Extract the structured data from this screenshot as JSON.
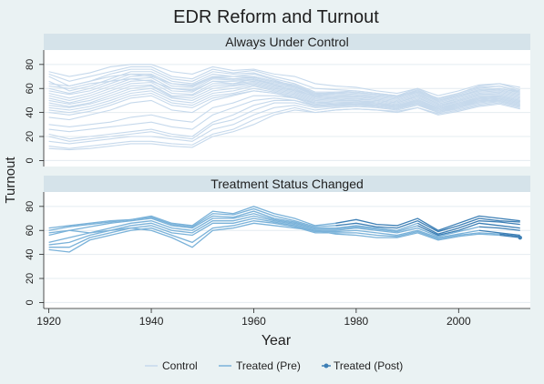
{
  "chart_data": {
    "type": "line",
    "title": "EDR Reform and Turnout",
    "xlabel": "Year",
    "ylabel": "Turnout",
    "xlim": [
      1919,
      2014
    ],
    "ylim": [
      -5,
      92
    ],
    "x_ticks": [
      1920,
      1940,
      1960,
      1980,
      2000
    ],
    "y_ticks": [
      0,
      20,
      40,
      60,
      80
    ],
    "grid": true,
    "legend_position": "bottom",
    "legend": [
      {
        "label": "Control",
        "color": "#c6d9ec"
      },
      {
        "label": "Treated (Pre)",
        "color": "#7ab2d9"
      },
      {
        "label": "Treated (Post)",
        "color": "#3d7fb5"
      }
    ],
    "x": [
      1920,
      1924,
      1928,
      1932,
      1936,
      1940,
      1944,
      1948,
      1952,
      1956,
      1960,
      1964,
      1968,
      1972,
      1976,
      1980,
      1984,
      1988,
      1992,
      1996,
      2000,
      2004,
      2008,
      2012
    ],
    "panels": [
      {
        "title": "Always Under Control",
        "series": [
          {
            "group": "Control",
            "values": [
              74,
              70,
              73,
              78,
              80,
              80,
              74,
              72,
              78,
              75,
              76,
              72,
              70,
              64,
              62,
              61,
              58,
              56,
              60,
              54,
              58,
              63,
              64,
              61
            ]
          },
          {
            "group": "Control",
            "values": [
              72,
              66,
              70,
              74,
              78,
              78,
              70,
              68,
              76,
              73,
              75,
              70,
              66,
              60,
              59,
              58,
              56,
              54,
              58,
              52,
              56,
              62,
              64,
              59
            ]
          },
          {
            "group": "Control",
            "values": [
              70,
              62,
              66,
              72,
              76,
              76,
              68,
              66,
              74,
              72,
              73,
              68,
              64,
              57,
              57,
              56,
              55,
              53,
              59,
              50,
              55,
              60,
              62,
              57
            ]
          },
          {
            "group": "Control",
            "values": [
              66,
              58,
              62,
              68,
              74,
              74,
              66,
              64,
              72,
              70,
              72,
              67,
              62,
              56,
              56,
              55,
              54,
              52,
              58,
              49,
              54,
              59,
              60,
              56
            ]
          },
          {
            "group": "Control",
            "values": [
              60,
              56,
              60,
              66,
              72,
              72,
              64,
              62,
              70,
              70,
              70,
              66,
              63,
              56,
              55,
              54,
              53,
              51,
              57,
              48,
              53,
              58,
              59,
              55
            ]
          },
          {
            "group": "Control",
            "values": [
              58,
              55,
              58,
              64,
              70,
              71,
              62,
              61,
              69,
              68,
              69,
              65,
              62,
              55,
              54,
              54,
              52,
              50,
              56,
              47,
              52,
              57,
              58,
              54
            ]
          },
          {
            "group": "Control",
            "values": [
              56,
              52,
              56,
              62,
              68,
              69,
              60,
              59,
              68,
              67,
              68,
              64,
              61,
              54,
              53,
              53,
              51,
              49,
              55,
              47,
              51,
              56,
              57,
              53
            ]
          },
          {
            "group": "Control",
            "values": [
              54,
              50,
              54,
              60,
              66,
              67,
              58,
              57,
              66,
              66,
              67,
              63,
              60,
              53,
              52,
              52,
              50,
              48,
              54,
              46,
              50,
              55,
              56,
              52
            ]
          },
          {
            "group": "Control",
            "values": [
              52,
              48,
              52,
              58,
              64,
              65,
              56,
              55,
              64,
              64,
              66,
              62,
              59,
              53,
              52,
              51,
              50,
              48,
              53,
              45,
              50,
              55,
              55,
              51
            ]
          },
          {
            "group": "Control",
            "values": [
              50,
              47,
              50,
              56,
              62,
              63,
              54,
              54,
              62,
              63,
              65,
              61,
              58,
              52,
              51,
              50,
              49,
              47,
              52,
              45,
              49,
              54,
              54,
              50
            ]
          },
          {
            "group": "Control",
            "values": [
              48,
              45,
              48,
              54,
              60,
              62,
              53,
              52,
              60,
              62,
              64,
              60,
              57,
              51,
              50,
              50,
              48,
              46,
              51,
              44,
              48,
              53,
              53,
              49
            ]
          },
          {
            "group": "Control",
            "values": [
              46,
              44,
              47,
              52,
              58,
              60,
              52,
              50,
              58,
              60,
              63,
              59,
              56,
              50,
              49,
              49,
              47,
              45,
              50,
              43,
              47,
              52,
              52,
              48
            ]
          },
          {
            "group": "Control",
            "values": [
              44,
              42,
              45,
              50,
              56,
              58,
              50,
              48,
              56,
              58,
              62,
              58,
              55,
              49,
              48,
              48,
              46,
              44,
              49,
              42,
              46,
              51,
              51,
              47
            ]
          },
          {
            "group": "Control",
            "values": [
              42,
              40,
              43,
              48,
              54,
              56,
              48,
              46,
              54,
              56,
              60,
              57,
              54,
              48,
              47,
              47,
              45,
              43,
              48,
              41,
              45,
              50,
              50,
              46
            ]
          },
          {
            "group": "Control",
            "values": [
              40,
              38,
              41,
              46,
              52,
              54,
              46,
              44,
              52,
              55,
              58,
              56,
              53,
              47,
              46,
              46,
              45,
              43,
              47,
              40,
              44,
              49,
              49,
              45
            ]
          },
          {
            "group": "Control",
            "values": [
              62,
              60,
              64,
              66,
              68,
              66,
              60,
              58,
              66,
              64,
              68,
              63,
              58,
              54,
              56,
              57,
              55,
              53,
              57,
              50,
              54,
              58,
              60,
              57
            ]
          },
          {
            "group": "Control",
            "values": [
              64,
              62,
              66,
              70,
              72,
              70,
              64,
              63,
              70,
              68,
              70,
              66,
              61,
              55,
              57,
              58,
              56,
              54,
              60,
              51,
              56,
              61,
              62,
              58
            ]
          },
          {
            "group": "Control",
            "values": [
              36,
              34,
              38,
              42,
              48,
              50,
              42,
              40,
              50,
              54,
              58,
              56,
              52,
              48,
              48,
              49,
              48,
              46,
              50,
              44,
              48,
              52,
              54,
              50
            ]
          },
          {
            "group": "Control",
            "values": [
              30,
              28,
              30,
              32,
              36,
              38,
              34,
              32,
              44,
              48,
              54,
              54,
              52,
              46,
              47,
              48,
              47,
              46,
              50,
              44,
              47,
              51,
              53,
              49
            ]
          },
          {
            "group": "Control",
            "values": [
              26,
              24,
              26,
              28,
              30,
              32,
              28,
              26,
              38,
              44,
              50,
              52,
              50,
              46,
              46,
              47,
              46,
              45,
              49,
              43,
              46,
              50,
              52,
              48
            ]
          },
          {
            "group": "Control",
            "values": [
              22,
              18,
              20,
              22,
              24,
              26,
              22,
              20,
              32,
              38,
              46,
              50,
              50,
              45,
              46,
              47,
              46,
              44,
              48,
              42,
              45,
              49,
              51,
              47
            ]
          },
          {
            "group": "Control",
            "values": [
              20,
              16,
              18,
              20,
              22,
              24,
              20,
              18,
              30,
              34,
              42,
              48,
              48,
              44,
              45,
              46,
              45,
              43,
              47,
              41,
              44,
              48,
              50,
              46
            ]
          },
          {
            "group": "Control",
            "values": [
              16,
              14,
              16,
              18,
              20,
              20,
              18,
              16,
              26,
              30,
              38,
              44,
              46,
              42,
              44,
              45,
              44,
              42,
              46,
              40,
              43,
              47,
              49,
              45
            ]
          },
          {
            "group": "Control",
            "values": [
              12,
              10,
              12,
              14,
              16,
              16,
              14,
              13,
              22,
              26,
              34,
              40,
              44,
              40,
              42,
              43,
              42,
              41,
              44,
              39,
              42,
              46,
              48,
              44
            ]
          },
          {
            "group": "Control",
            "values": [
              10,
              9,
              10,
              12,
              14,
              14,
              12,
              11,
              20,
              24,
              30,
              38,
              42,
              40,
              42,
              43,
              42,
              40,
              44,
              38,
              41,
              45,
              47,
              43
            ]
          }
        ]
      },
      {
        "title": "Treatment Status Changed",
        "series": [
          {
            "group": "Treated",
            "switch_year": 1976,
            "values": [
              62,
              64,
              66,
              68,
              69,
              72,
              66,
              64,
              76,
              74,
              80,
              74,
              70,
              64,
              66,
              69,
              65,
              64,
              70,
              60,
              66,
              72,
              70,
              68
            ]
          },
          {
            "group": "Treated",
            "switch_year": 1976,
            "values": [
              60,
              63,
              65,
              67,
              69,
              71,
              65,
              63,
              74,
              73,
              78,
              72,
              68,
              63,
              64,
              66,
              63,
              62,
              68,
              59,
              64,
              70,
              68,
              67
            ]
          },
          {
            "group": "Treated",
            "switch_year": 1992,
            "values": [
              56,
              60,
              63,
              66,
              68,
              70,
              64,
              62,
              72,
              71,
              76,
              70,
              67,
              62,
              62,
              64,
              62,
              60,
              66,
              57,
              62,
              68,
              67,
              65
            ]
          },
          {
            "group": "Treated",
            "switch_year": 1992,
            "values": [
              50,
              54,
              58,
              62,
              66,
              68,
              62,
              60,
              70,
              70,
              74,
              69,
              66,
              61,
              61,
              63,
              61,
              59,
              64,
              56,
              60,
              66,
              64,
              62
            ]
          },
          {
            "group": "Treated",
            "switch_year": 2004,
            "values": [
              48,
              50,
              56,
              60,
              64,
              66,
              60,
              58,
              68,
              68,
              72,
              68,
              65,
              60,
              60,
              62,
              60,
              58,
              62,
              55,
              59,
              63,
              62,
              60
            ]
          },
          {
            "group": "Treated",
            "switch_year": 2004,
            "values": [
              46,
              46,
              54,
              58,
              62,
              64,
              58,
              56,
              66,
              66,
              70,
              67,
              64,
              59,
              59,
              60,
              58,
              56,
              60,
              54,
              57,
              60,
              58,
              56
            ]
          },
          {
            "group": "Treated",
            "switch_year": 2008,
            "values": [
              44,
              42,
              52,
              56,
              60,
              62,
              56,
              50,
              62,
              64,
              68,
              66,
              63,
              58,
              58,
              58,
              56,
              55,
              59,
              53,
              56,
              58,
              57,
              55
            ]
          },
          {
            "group": "Treated",
            "switch_year": 2008,
            "values": [
              58,
              60,
              58,
              60,
              62,
              60,
              54,
              46,
              60,
              62,
              66,
              64,
              62,
              60,
              57,
              56,
              54,
              54,
              58,
              52,
              55,
              57,
              56,
              54
            ]
          }
        ]
      }
    ]
  }
}
